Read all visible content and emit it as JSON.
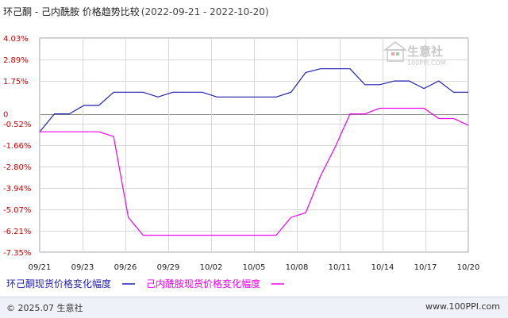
{
  "chart_data": {
    "type": "line",
    "title": "环己酮 - 己内酰胺 价格趋势比较",
    "date_range": "(2022-09-21 - 2022-10-20)",
    "x_ticks": [
      "09/21",
      "09/23",
      "09/26",
      "09/29",
      "10/02",
      "10/05",
      "10/08",
      "10/11",
      "10/14",
      "10/17",
      "10/20"
    ],
    "y_ticks": [
      "4.03%",
      "2.89%",
      "1.75%",
      "0",
      "-0.52%",
      "-1.66%",
      "-2.80%",
      "-3.94%",
      "-5.07%",
      "-6.21%",
      "-7.35%"
    ],
    "y_tick_values": [
      4.03,
      2.89,
      1.75,
      0,
      -0.52,
      -1.66,
      -2.8,
      -3.94,
      -5.07,
      -6.21,
      -7.35
    ],
    "ylim": [
      -7.35,
      4.03
    ],
    "grid": true,
    "x": [
      "09/21",
      "09/22",
      "09/23",
      "09/24",
      "09/25",
      "09/26",
      "09/27",
      "09/28",
      "09/29",
      "09/30",
      "10/01",
      "10/02",
      "10/03",
      "10/04",
      "10/05",
      "10/06",
      "10/07",
      "10/08",
      "10/09",
      "10/10",
      "10/11",
      "10/12",
      "10/13",
      "10/14",
      "10/15",
      "10/16",
      "10/17",
      "10/18",
      "10/19",
      "10/20"
    ],
    "series": [
      {
        "name": "环己酮现货价格变化幅度",
        "color": "#1f1fb4",
        "values": [
          -0.95,
          0,
          0,
          0.45,
          0.45,
          1.15,
          1.15,
          1.15,
          0.9,
          1.15,
          1.15,
          1.15,
          0.9,
          0.9,
          0.9,
          0.9,
          0.9,
          1.15,
          2.2,
          2.4,
          2.4,
          2.4,
          1.55,
          1.55,
          1.75,
          1.75,
          1.35,
          1.75,
          1.15,
          1.15
        ]
      },
      {
        "name": "己内酰胺现货价格变化幅度",
        "color": "#ee00ee",
        "values": [
          -0.95,
          -0.95,
          -0.95,
          -0.95,
          -0.95,
          -1.2,
          -5.5,
          -6.45,
          -6.45,
          -6.45,
          -6.45,
          -6.45,
          -6.45,
          -6.45,
          -6.45,
          -6.45,
          -6.45,
          -5.5,
          -5.25,
          -3.3,
          -1.75,
          0,
          0,
          0.3,
          0.3,
          0.3,
          0.3,
          -0.25,
          -0.25,
          -0.6
        ]
      }
    ]
  },
  "watermark": "生意社",
  "watermark_url": "100PPI.COM",
  "footer": {
    "copyright": "© 2025.07 生意社",
    "site": "www.100PPI.com"
  }
}
